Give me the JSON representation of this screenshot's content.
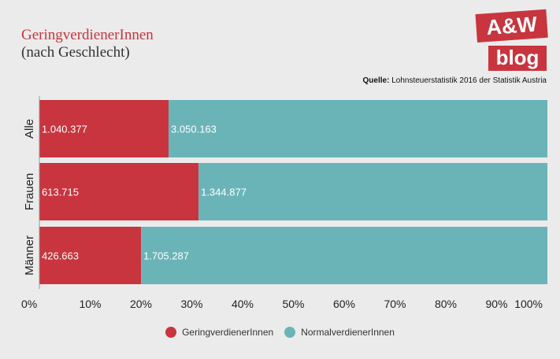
{
  "header": {
    "title": "GeringverdienerInnen",
    "subtitle": "(nach Geschlecht)",
    "logo_top": "A&W",
    "logo_bottom": "blog",
    "source_label": "Quelle:",
    "source_text": "Lohnsteuerstatistik 2016 der Statistik Austria"
  },
  "colors": {
    "gering": "#c8353e",
    "normal": "#6ab4b8",
    "brand": "#c8353e"
  },
  "chart_data": {
    "type": "bar",
    "orientation": "horizontal",
    "stacked": true,
    "normalized": "percent",
    "categories": [
      "Alle",
      "Frauen",
      "Männer"
    ],
    "series": [
      {
        "name": "GeringverdienerInnen",
        "values": [
          1040377,
          613715,
          426663
        ],
        "labels": [
          "1.040.377",
          "613.715",
          "426.663"
        ]
      },
      {
        "name": "NormalverdienerInnen",
        "values": [
          3050163,
          1344877,
          1705287
        ],
        "labels": [
          "3.050.163",
          "1.344.877",
          "1.705.287"
        ]
      }
    ],
    "xlim": [
      0,
      100
    ],
    "xticks": [
      "0%",
      "10%",
      "20%",
      "30%",
      "40%",
      "50%",
      "60%",
      "70%",
      "80%",
      "90%",
      "100%"
    ],
    "legend_position": "bottom"
  }
}
